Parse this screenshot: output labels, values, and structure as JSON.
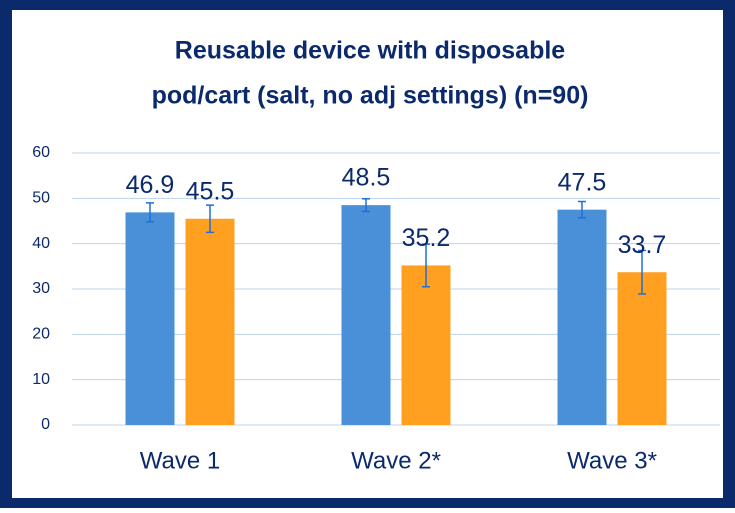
{
  "chart_data": {
    "type": "bar",
    "title": [
      "Reusable device with disposable",
      "pod/cart (salt, no adj settings) (n=90)"
    ],
    "categories": [
      "Wave 1",
      "Wave 2*",
      "Wave 3*"
    ],
    "series": [
      {
        "color": "#4a90d9",
        "values": [
          46.9,
          48.5,
          47.5
        ],
        "errors": [
          2.1,
          1.4,
          1.8
        ]
      },
      {
        "color": "#ffa020",
        "values": [
          45.5,
          35.2,
          33.7
        ],
        "errors": [
          3.0,
          4.7,
          4.8
        ]
      }
    ],
    "error_color": "#1f6fd6",
    "ylim": [
      0,
      60
    ],
    "yticks": [
      0,
      10,
      20,
      30,
      40,
      50,
      60
    ],
    "grid": true
  }
}
